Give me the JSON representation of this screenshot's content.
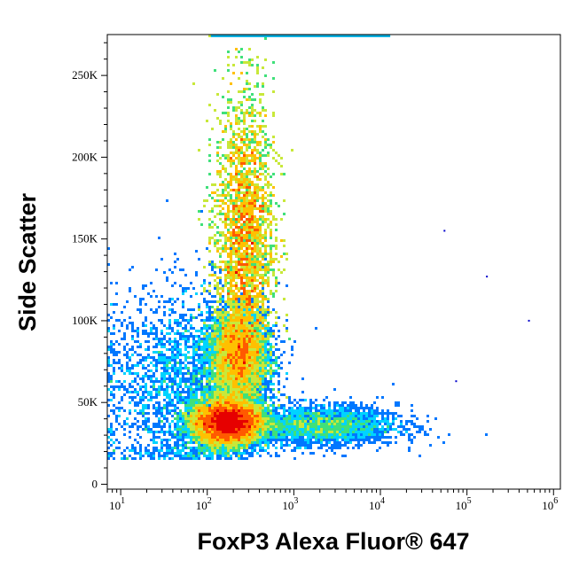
{
  "chart_data": {
    "type": "scatter",
    "subtype": "density-dot-plot",
    "xlabel": "FoxP3 Alexa Fluor® 647",
    "ylabel": "Side Scatter",
    "x_scale": "log",
    "xlim": [
      7,
      1200000
    ],
    "ylim": [
      -3000,
      275000
    ],
    "x_ticks": [
      {
        "value": 10,
        "base": "10",
        "exp": "1"
      },
      {
        "value": 100,
        "base": "10",
        "exp": "2"
      },
      {
        "value": 1000,
        "base": "10",
        "exp": "3"
      },
      {
        "value": 10000,
        "base": "10",
        "exp": "4"
      },
      {
        "value": 100000,
        "base": "10",
        "exp": "5"
      },
      {
        "value": 1000000,
        "base": "10",
        "exp": "6"
      }
    ],
    "y_ticks": [
      {
        "value": 0,
        "label": "0"
      },
      {
        "value": 50000,
        "label": "50K"
      },
      {
        "value": 100000,
        "label": "100K"
      },
      {
        "value": 150000,
        "label": "150K"
      },
      {
        "value": 200000,
        "label": "200K"
      },
      {
        "value": 250000,
        "label": "250K"
      }
    ],
    "density_colormap": [
      "#0000cc",
      "#0077ff",
      "#00d4ff",
      "#3fe07a",
      "#c8e83a",
      "#ffc000",
      "#ff5a00",
      "#e60000"
    ],
    "populations": [
      {
        "x_center": 170,
        "y_center": 38000,
        "spread_log_x": 0.2,
        "spread_y": 7000,
        "weight": 0.3
      },
      {
        "x_center": 230,
        "y_center": 78000,
        "spread_log_x": 0.17,
        "spread_y": 14000,
        "weight": 0.16
      },
      {
        "x_center": 270,
        "y_center": 150000,
        "spread_log_x": 0.17,
        "spread_y": 45000,
        "weight": 0.42
      },
      {
        "x_center": 2000,
        "y_center": 36000,
        "spread_log_x": 0.45,
        "spread_y": 6000,
        "weight": 0.05
      },
      {
        "x_center": 60,
        "y_center": 60000,
        "spread_log_x": 0.45,
        "spread_y": 30000,
        "weight": 0.07
      }
    ],
    "outlier_points": [
      {
        "x": 75000,
        "y": 63000
      },
      {
        "x": 520000,
        "y": 100000
      },
      {
        "x": 170000,
        "y": 127000
      },
      {
        "x": 55000,
        "y": 155000
      }
    ],
    "saturation_band": {
      "y": 275000,
      "x_range": [
        110,
        13000
      ]
    }
  }
}
